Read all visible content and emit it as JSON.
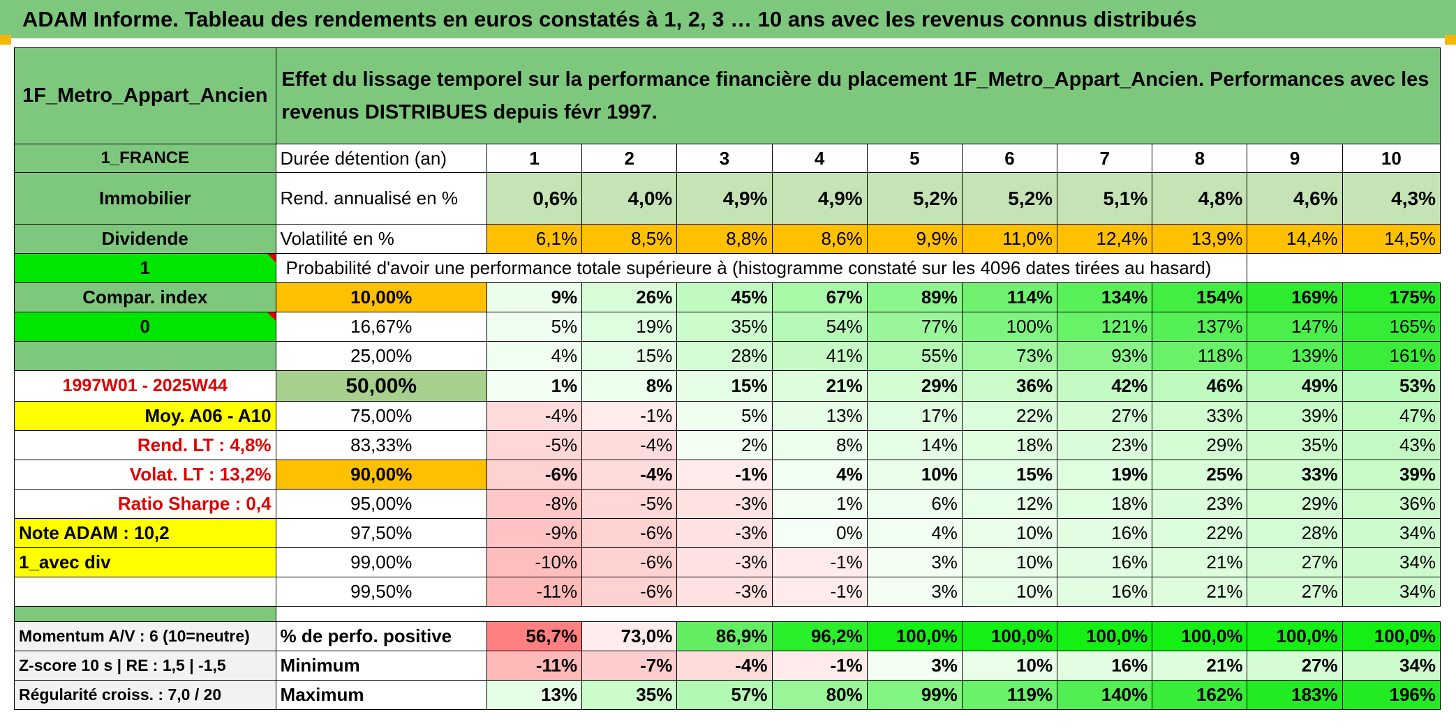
{
  "title": "ADAM Informe. Tableau des rendements en euros constatés à 1, 2, 3 … 10 ans avec les revenus connus distribués",
  "fund_name": "1F_Metro_Appart_Ancien",
  "description": "Effet du lissage temporel sur la performance financière du placement 1F_Metro_Appart_Ancien. Performances avec les revenus DISTRIBUES depuis févr 1997.",
  "left": {
    "country": "1_FRANCE",
    "category": "Immobilier",
    "income_type": "Dividende",
    "option1": "1",
    "compar_index": "Compar. index",
    "option0": "0",
    "period": "1997W01 - 2025W44",
    "moy": "Moy. A06 - A10",
    "rend_lt": "Rend. LT :   4,8%",
    "volat_lt": "Volat. LT :   13,2%",
    "sharpe": "Ratio Sharpe :   0,4",
    "note": "Note ADAM : 10,2",
    "variant": "1_avec div",
    "momentum": "Momentum A/V : 6 (10=neutre)",
    "zscore": "Z-score 10 s | RE : 1,5 | -1,5",
    "regularite": "Régularité croiss. : 7,0 / 20"
  },
  "labels": {
    "duration": "Durée détention (an)",
    "rend": "Rend. annualisé en %",
    "vol": "Volatilité en %",
    "proba": "Probabilité d'avoir une performance totale supérieure à (histogramme constaté sur les 4096 dates tirées au hasard)",
    "pct_pos": "% de perfo. positive",
    "min": "Minimum",
    "max": "Maximum"
  },
  "years": [
    "1",
    "2",
    "3",
    "4",
    "5",
    "6",
    "7",
    "8",
    "9",
    "10"
  ],
  "rend": [
    "0,6%",
    "4,0%",
    "4,9%",
    "4,9%",
    "5,2%",
    "5,2%",
    "5,1%",
    "4,8%",
    "4,6%",
    "4,3%"
  ],
  "vol": [
    "6,1%",
    "8,5%",
    "8,8%",
    "8,6%",
    "9,9%",
    "11,0%",
    "12,4%",
    "13,9%",
    "14,4%",
    "14,5%"
  ],
  "quantiles": [
    {
      "p": "10,00%",
      "v": [
        "9%",
        "26%",
        "45%",
        "67%",
        "89%",
        "114%",
        "134%",
        "154%",
        "169%",
        "175%"
      ]
    },
    {
      "p": "16,67%",
      "v": [
        "5%",
        "19%",
        "35%",
        "54%",
        "77%",
        "100%",
        "121%",
        "137%",
        "147%",
        "165%"
      ]
    },
    {
      "p": "25,00%",
      "v": [
        "4%",
        "15%",
        "28%",
        "41%",
        "55%",
        "73%",
        "93%",
        "118%",
        "139%",
        "161%"
      ]
    },
    {
      "p": "50,00%",
      "v": [
        "1%",
        "8%",
        "15%",
        "21%",
        "29%",
        "36%",
        "42%",
        "46%",
        "49%",
        "53%"
      ]
    },
    {
      "p": "75,00%",
      "v": [
        "-4%",
        "-1%",
        "5%",
        "13%",
        "17%",
        "22%",
        "27%",
        "33%",
        "39%",
        "47%"
      ]
    },
    {
      "p": "83,33%",
      "v": [
        "-5%",
        "-4%",
        "2%",
        "8%",
        "14%",
        "18%",
        "23%",
        "29%",
        "35%",
        "43%"
      ]
    },
    {
      "p": "90,00%",
      "v": [
        "-6%",
        "-4%",
        "-1%",
        "4%",
        "10%",
        "15%",
        "19%",
        "25%",
        "33%",
        "39%"
      ]
    },
    {
      "p": "95,00%",
      "v": [
        "-8%",
        "-5%",
        "-3%",
        "1%",
        "6%",
        "12%",
        "18%",
        "23%",
        "29%",
        "36%"
      ]
    },
    {
      "p": "97,50%",
      "v": [
        "-9%",
        "-6%",
        "-3%",
        "0%",
        "4%",
        "10%",
        "16%",
        "22%",
        "28%",
        "34%"
      ]
    },
    {
      "p": "99,00%",
      "v": [
        "-10%",
        "-6%",
        "-3%",
        "-1%",
        "3%",
        "10%",
        "16%",
        "21%",
        "27%",
        "34%"
      ]
    },
    {
      "p": "99,50%",
      "v": [
        "-11%",
        "-6%",
        "-3%",
        "-1%",
        "3%",
        "10%",
        "16%",
        "21%",
        "27%",
        "34%"
      ]
    }
  ],
  "pct_pos": [
    "56,7%",
    "73,0%",
    "86,9%",
    "96,2%",
    "100,0%",
    "100,0%",
    "100,0%",
    "100,0%",
    "100,0%",
    "100,0%"
  ],
  "min": [
    "-11%",
    "-7%",
    "-4%",
    "-1%",
    "3%",
    "10%",
    "16%",
    "21%",
    "27%",
    "34%"
  ],
  "max": [
    "13%",
    "35%",
    "57%",
    "80%",
    "99%",
    "119%",
    "140%",
    "162%",
    "183%",
    "196%"
  ]
}
